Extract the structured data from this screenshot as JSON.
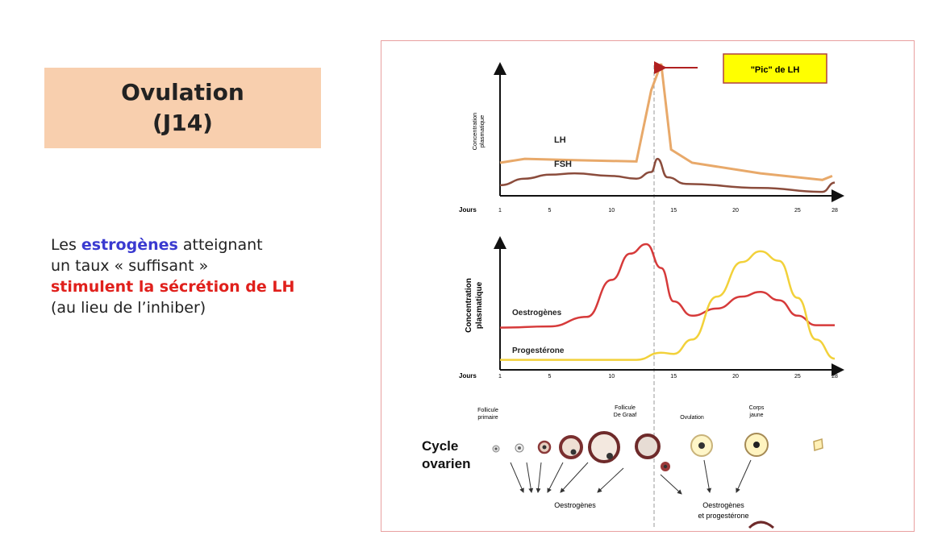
{
  "title": {
    "line1": "Ovulation",
    "line2": "(J14)"
  },
  "description": {
    "part1": "Les ",
    "highlight1": "estrogènes",
    "part2": " atteignant",
    "line2": "un taux « suffisant »",
    "highlight2": "stimulent la sécrétion de LH",
    "line4": "(au lieu de l’inhiber)"
  },
  "figure": {
    "pic_label": "\"Pic\" de LH",
    "cycle_label_1": "Cycle",
    "cycle_label_2": "ovarien",
    "stages": {
      "follicule_primaire_1": "Follicule",
      "follicule_primaire_2": "primaire",
      "follicule_degraaf_1": "Follicule",
      "follicule_degraaf_2": "De Graaf",
      "ovulation": "Ovulation",
      "corps_jaune_1": "Corps",
      "corps_jaune_2": "jaune"
    },
    "hormone_output_1": "Oestrogènes",
    "hormone_output_2a": "Oestrogènes",
    "hormone_output_2b": "et progestérone",
    "colors": {
      "lh": "#e8a96a",
      "fsh": "#8b4c3c",
      "oestrogenes": "#d63a3a",
      "progesterone": "#f2d13a",
      "pic_box": "#ffff00",
      "arrow": "#b02020"
    }
  },
  "chart_data": [
    {
      "type": "line",
      "xlabel": "Jours",
      "ylabel_1": "Concentration",
      "ylabel_2": "plasmatique",
      "xlim": [
        1,
        28
      ],
      "ticks": [
        "1",
        "5",
        "10",
        "15",
        "20",
        "25",
        "28"
      ],
      "series": [
        {
          "name": "LH",
          "points": [
            [
              1,
              0.25
            ],
            [
              3,
              0.28
            ],
            [
              7,
              0.27
            ],
            [
              12,
              0.26
            ],
            [
              13.2,
              0.8
            ],
            [
              14,
              1.0
            ],
            [
              14.8,
              0.35
            ],
            [
              16.5,
              0.25
            ],
            [
              22,
              0.17
            ],
            [
              27,
              0.12
            ],
            [
              27.8,
              0.15
            ]
          ]
        },
        {
          "name": "FSH",
          "points": [
            [
              1,
              0.08
            ],
            [
              3,
              0.13
            ],
            [
              5,
              0.16
            ],
            [
              7,
              0.17
            ],
            [
              10,
              0.15
            ],
            [
              12,
              0.13
            ],
            [
              13.2,
              0.18
            ],
            [
              13.7,
              0.28
            ],
            [
              14.5,
              0.14
            ],
            [
              16,
              0.09
            ],
            [
              22,
              0.06
            ],
            [
              27,
              0.03
            ],
            [
              28,
              0.1
            ]
          ]
        }
      ]
    },
    {
      "type": "line",
      "xlabel": "Jours",
      "ylabel_1": "Concentration",
      "ylabel_2": "plasmatique",
      "xlim": [
        1,
        28
      ],
      "ticks": [
        "1",
        "5",
        "10",
        "15",
        "20",
        "25",
        "28"
      ],
      "series": [
        {
          "name": "Oestrogènes",
          "points": [
            [
              1,
              0.3
            ],
            [
              5,
              0.31
            ],
            [
              8,
              0.39
            ],
            [
              10,
              0.7
            ],
            [
              11.5,
              0.92
            ],
            [
              12.8,
              1.0
            ],
            [
              14,
              0.8
            ],
            [
              15,
              0.52
            ],
            [
              16.5,
              0.4
            ],
            [
              18.5,
              0.46
            ],
            [
              20.5,
              0.56
            ],
            [
              22,
              0.6
            ],
            [
              23.5,
              0.53
            ],
            [
              25,
              0.4
            ],
            [
              26.5,
              0.32
            ],
            [
              28,
              0.32
            ]
          ]
        },
        {
          "name": "Progestérone",
          "points": [
            [
              1,
              0.03
            ],
            [
              8,
              0.03
            ],
            [
              12,
              0.03
            ],
            [
              14,
              0.09
            ],
            [
              15,
              0.08
            ],
            [
              16.5,
              0.2
            ],
            [
              18.5,
              0.56
            ],
            [
              20.5,
              0.85
            ],
            [
              22,
              0.94
            ],
            [
              23.5,
              0.86
            ],
            [
              25,
              0.55
            ],
            [
              26.5,
              0.2
            ],
            [
              28,
              0.04
            ]
          ]
        }
      ]
    }
  ]
}
